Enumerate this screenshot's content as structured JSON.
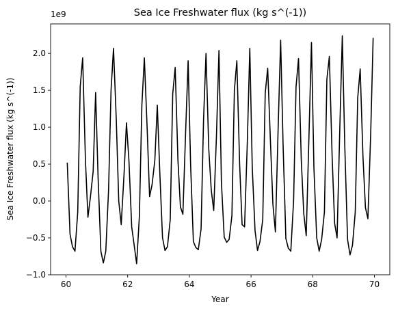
{
  "chart_data": {
    "type": "line",
    "title": "Sea Ice Freshwater flux (kg s^(-1))",
    "xlabel": "Year",
    "ylabel": "Sea Ice Freshwater flux (kg s^(-1))",
    "y_offset_label": "1e9",
    "xlim": [
      59.5,
      70.5
    ],
    "ylim": [
      -1000000000.0,
      2400000000.0
    ],
    "x_ticks": [
      60,
      62,
      64,
      66,
      68,
      70
    ],
    "x_tick_labels": [
      "60",
      "62",
      "64",
      "66",
      "68",
      "70"
    ],
    "y_ticks": [
      -1000000000.0,
      -500000000.0,
      0.0,
      500000000.0,
      1000000000.0,
      1500000000.0,
      2000000000.0
    ],
    "y_tick_labels": [
      "−1.0",
      "−0.5",
      "0.0",
      "0.5",
      "1.0",
      "1.5",
      "2.0"
    ],
    "grid": false,
    "series": [
      {
        "color": "#000000",
        "x": [
          60.04,
          60.13,
          60.21,
          60.29,
          60.38,
          60.46,
          60.54,
          60.63,
          60.71,
          60.79,
          60.88,
          60.96,
          61.04,
          61.13,
          61.21,
          61.29,
          61.38,
          61.46,
          61.54,
          61.63,
          61.71,
          61.79,
          61.88,
          61.96,
          62.04,
          62.13,
          62.21,
          62.29,
          62.38,
          62.46,
          62.54,
          62.63,
          62.71,
          62.79,
          62.88,
          62.96,
          63.04,
          63.13,
          63.21,
          63.29,
          63.38,
          63.46,
          63.54,
          63.63,
          63.71,
          63.79,
          63.88,
          63.96,
          64.04,
          64.13,
          64.21,
          64.29,
          64.38,
          64.46,
          64.54,
          64.63,
          64.71,
          64.79,
          64.88,
          64.96,
          65.04,
          65.13,
          65.21,
          65.29,
          65.38,
          65.46,
          65.54,
          65.63,
          65.71,
          65.79,
          65.88,
          65.96,
          66.04,
          66.13,
          66.21,
          66.29,
          66.38,
          66.46,
          66.54,
          66.63,
          66.71,
          66.79,
          66.88,
          66.96,
          67.04,
          67.13,
          67.21,
          67.29,
          67.38,
          67.46,
          67.54,
          67.63,
          67.71,
          67.79,
          67.88,
          67.96,
          68.04,
          68.13,
          68.21,
          68.29,
          68.38,
          68.46,
          68.54,
          68.63,
          68.71,
          68.79,
          68.88,
          68.96,
          69.04,
          69.13,
          69.21,
          69.29,
          69.38,
          69.46,
          69.54,
          69.63,
          69.71,
          69.79,
          69.88,
          69.96
        ],
        "y": [
          520000000.0,
          -450000000.0,
          -620000000.0,
          -680000000.0,
          -150000000.0,
          1550000000.0,
          1940000000.0,
          550000000.0,
          -220000000.0,
          50000000.0,
          400000000.0,
          1470000000.0,
          320000000.0,
          -680000000.0,
          -840000000.0,
          -680000000.0,
          150000000.0,
          1500000000.0,
          2070000000.0,
          1100000000.0,
          0.0,
          -320000000.0,
          350000000.0,
          1060000000.0,
          550000000.0,
          -350000000.0,
          -600000000.0,
          -850000000.0,
          -200000000.0,
          1300000000.0,
          1940000000.0,
          1000000000.0,
          60000000.0,
          220000000.0,
          550000000.0,
          1300000000.0,
          400000000.0,
          -500000000.0,
          -670000000.0,
          -620000000.0,
          -250000000.0,
          1450000000.0,
          1810000000.0,
          550000000.0,
          -80000000.0,
          -180000000.0,
          950000000.0,
          1900000000.0,
          500000000.0,
          -550000000.0,
          -630000000.0,
          -660000000.0,
          -380000000.0,
          1100000000.0,
          2000000000.0,
          700000000.0,
          150000000.0,
          -130000000.0,
          900000000.0,
          2040000000.0,
          250000000.0,
          -490000000.0,
          -560000000.0,
          -520000000.0,
          -200000000.0,
          1500000000.0,
          1900000000.0,
          500000000.0,
          -320000000.0,
          -350000000.0,
          800000000.0,
          2070000000.0,
          450000000.0,
          -400000000.0,
          -670000000.0,
          -550000000.0,
          -250000000.0,
          1460000000.0,
          1800000000.0,
          800000000.0,
          -50000000.0,
          -420000000.0,
          1000000000.0,
          2180000000.0,
          750000000.0,
          -510000000.0,
          -640000000.0,
          -680000000.0,
          0.0,
          1550000000.0,
          1930000000.0,
          550000000.0,
          -170000000.0,
          -470000000.0,
          900000000.0,
          2150000000.0,
          440000000.0,
          -500000000.0,
          -680000000.0,
          -520000000.0,
          -150000000.0,
          1650000000.0,
          1960000000.0,
          600000000.0,
          -300000000.0,
          -500000000.0,
          1000000000.0,
          2240000000.0,
          750000000.0,
          -520000000.0,
          -730000000.0,
          -600000000.0,
          -150000000.0,
          1400000000.0,
          1790000000.0,
          600000000.0,
          -90000000.0,
          -240000000.0,
          900000000.0,
          2210000000.0
        ]
      }
    ]
  }
}
